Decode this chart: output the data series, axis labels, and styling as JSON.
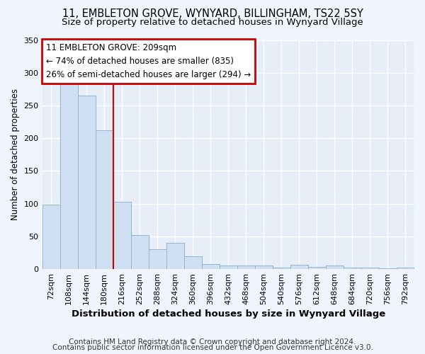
{
  "title1": "11, EMBLETON GROVE, WYNYARD, BILLINGHAM, TS22 5SY",
  "title2": "Size of property relative to detached houses in Wynyard Village",
  "xlabel": "Distribution of detached houses by size in Wynyard Village",
  "ylabel": "Number of detached properties",
  "footer1": "Contains HM Land Registry data © Crown copyright and database right 2024.",
  "footer2": "Contains public sector information licensed under the Open Government Licence v3.0.",
  "annotation_line1": "11 EMBLETON GROVE: 209sqm",
  "annotation_line2": "← 74% of detached houses are smaller (835)",
  "annotation_line3": "26% of semi-detached houses are larger (294) →",
  "bin_labels": [
    "72sqm",
    "108sqm",
    "144sqm",
    "180sqm",
    "216sqm",
    "252sqm",
    "288sqm",
    "324sqm",
    "360sqm",
    "396sqm",
    "432sqm",
    "468sqm",
    "504sqm",
    "540sqm",
    "576sqm",
    "612sqm",
    "648sqm",
    "684sqm",
    "720sqm",
    "756sqm",
    "792sqm"
  ],
  "bar_values": [
    99,
    286,
    265,
    212,
    103,
    52,
    30,
    40,
    20,
    8,
    5,
    5,
    5,
    2,
    7,
    3,
    5,
    2,
    2,
    1,
    2
  ],
  "bar_color": "#cfe0f3",
  "bar_edge_color": "#8eb4d8",
  "vline_color": "#cc0000",
  "annotation_box_color": "#ffffff",
  "annotation_box_edge": "#cc0000",
  "bg_color": "#e8eef8",
  "fig_bg_color": "#f0f4fc",
  "ylim": [
    0,
    350
  ],
  "yticks": [
    0,
    50,
    100,
    150,
    200,
    250,
    300,
    350
  ],
  "title1_fontsize": 10.5,
  "title2_fontsize": 9.5,
  "xlabel_fontsize": 9.5,
  "ylabel_fontsize": 8.5,
  "tick_fontsize": 8,
  "annotation_fontsize": 8.5,
  "footer_fontsize": 7.5
}
